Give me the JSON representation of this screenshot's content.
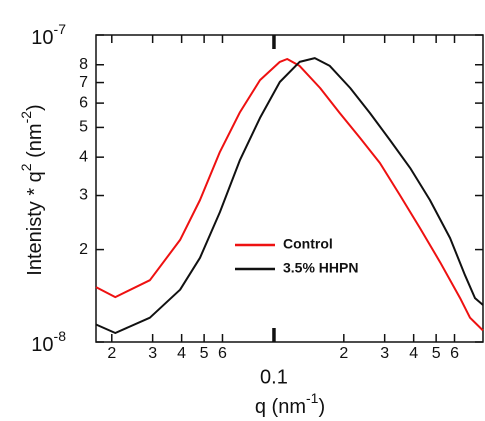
{
  "chart_data": {
    "type": "line",
    "log_x": true,
    "log_y": true,
    "x_label": {
      "text": "q (nm",
      "sup": "-1",
      "end": ")"
    },
    "y_label": {
      "text": "Intenisty * q",
      "sup": "2",
      "mid": " (nm",
      "sup2": "-2",
      "end": ")"
    },
    "xlim": [
      0.0171,
      0.796
    ],
    "ylim": [
      1e-08,
      1e-07
    ],
    "xticks": [
      {
        "value": 0.02,
        "label": "2"
      },
      {
        "value": 0.03,
        "label": "3"
      },
      {
        "value": 0.04,
        "label": "4"
      },
      {
        "value": 0.05,
        "label": "5"
      },
      {
        "value": 0.06,
        "label": "6"
      },
      0.1,
      {
        "value": 0.2,
        "label": "2"
      },
      {
        "value": 0.3,
        "label": "3"
      },
      {
        "value": 0.4,
        "label": "4"
      },
      {
        "value": 0.5,
        "label": "5"
      },
      {
        "value": 0.6,
        "label": "6"
      }
    ],
    "yticks": [
      {
        "value": 1e-08,
        "label": "10",
        "exponent": "-8"
      },
      {
        "value": 2e-08,
        "label": "2"
      },
      {
        "value": 3e-08,
        "label": "3"
      },
      {
        "value": 4e-08,
        "label": "4"
      },
      {
        "value": 5e-08,
        "label": "5"
      },
      {
        "value": 6e-08,
        "label": "6"
      },
      {
        "value": 7e-08,
        "label": "7"
      },
      {
        "value": 8e-08,
        "label": "8"
      },
      {
        "value": 1e-07,
        "label": "10",
        "exponent": "-7"
      }
    ],
    "series": [
      {
        "name": "Control",
        "color": "#ee1111",
        "x": [
          0.0171,
          0.0207,
          0.0292,
          0.0394,
          0.048,
          0.0585,
          0.0714,
          0.0871,
          0.106,
          0.114,
          0.129,
          0.158,
          0.192,
          0.235,
          0.286,
          0.349,
          0.426,
          0.52,
          0.634,
          0.7,
          0.796
        ],
        "values": [
          1.51e-08,
          1.4e-08,
          1.59e-08,
          2.15e-08,
          2.9e-08,
          4.16e-08,
          5.61e-08,
          7.13e-08,
          8.17e-08,
          8.35e-08,
          7.93e-08,
          6.72e-08,
          5.57e-08,
          4.62e-08,
          3.83e-08,
          3.01e-08,
          2.35e-08,
          1.82e-08,
          1.39e-08,
          1.2e-08,
          1.09e-08
        ]
      },
      {
        "name": "3.5% HHPN",
        "color": "#111111",
        "x": [
          0.0171,
          0.0207,
          0.0292,
          0.0394,
          0.048,
          0.0585,
          0.0714,
          0.0871,
          0.106,
          0.129,
          0.15,
          0.174,
          0.213,
          0.259,
          0.316,
          0.386,
          0.47,
          0.574,
          0.666,
          0.735,
          0.796
        ],
        "values": [
          1.14e-08,
          1.07e-08,
          1.2e-08,
          1.48e-08,
          1.88e-08,
          2.65e-08,
          3.92e-08,
          5.37e-08,
          7.03e-08,
          8.17e-08,
          8.41e-08,
          7.93e-08,
          6.72e-08,
          5.57e-08,
          4.55e-08,
          3.69e-08,
          2.9e-08,
          2.18e-08,
          1.65e-08,
          1.39e-08,
          1.32e-08
        ]
      }
    ]
  }
}
